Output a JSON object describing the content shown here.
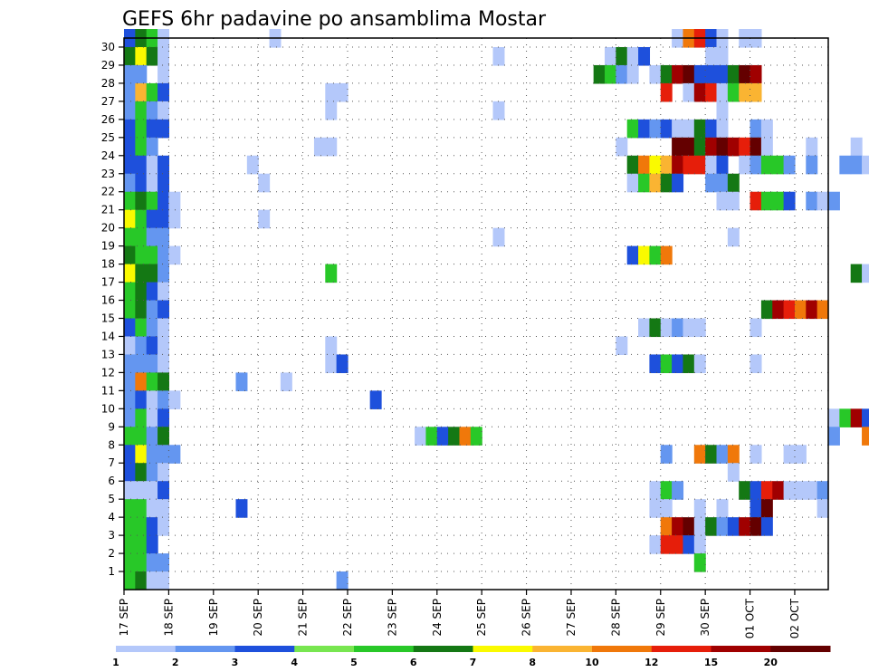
{
  "chart_data": {
    "type": "heatmap",
    "title": "GEFS 6hr padavine po ansamblima Mostar",
    "xlabel": "",
    "ylabel": "",
    "x_tick_labels": [
      "17 SEP",
      "18 SEP",
      "19 SEP",
      "20 SEP",
      "21 SEP",
      "22 SEP",
      "23 SEP",
      "24 SEP",
      "25 SEP",
      "26 SEP",
      "27 SEP",
      "28 SEP",
      "29 SEP",
      "30 SEP",
      "01 OCT",
      "02 OCT"
    ],
    "y_tick_labels": [
      "1",
      "2",
      "3",
      "4",
      "5",
      "6",
      "7",
      "8",
      "9",
      "10",
      "11",
      "12",
      "13",
      "14",
      "15",
      "16",
      "17",
      "18",
      "19",
      "20",
      "21",
      "22",
      "23",
      "24",
      "25",
      "26",
      "27",
      "28",
      "29",
      "30"
    ],
    "y_range": [
      0,
      30
    ],
    "time_steps_per_day": 4,
    "grid": "dotted",
    "colorbar": {
      "levels": [
        "1",
        "2",
        "3",
        "4",
        "5",
        "6",
        "7",
        "8",
        "10",
        "12",
        "15",
        "20"
      ],
      "colors": [
        "#b4c8fa",
        "#6496f0",
        "#1e50dc",
        "#78e650",
        "#28c828",
        "#147814",
        "#fafa00",
        "#fab432",
        "#f0780a",
        "#e61e0a",
        "#a00000",
        "#640000"
      ]
    },
    "cells_note_format": "[member, time_step_index, color_class_1_to_12]",
    "cells": [
      [
        30,
        0,
        3
      ],
      [
        30,
        1,
        6
      ],
      [
        30,
        2,
        5
      ],
      [
        30,
        3,
        1
      ],
      [
        30,
        13,
        1
      ],
      [
        30,
        49,
        1
      ],
      [
        30,
        50,
        9
      ],
      [
        30,
        51,
        10
      ],
      [
        30,
        52,
        3
      ],
      [
        30,
        53,
        1
      ],
      [
        30,
        55,
        1
      ],
      [
        30,
        56,
        1
      ],
      [
        30,
        70,
        2
      ],
      [
        30,
        71,
        2
      ],
      [
        30,
        72,
        2
      ],
      [
        29,
        0,
        6
      ],
      [
        29,
        1,
        7
      ],
      [
        29,
        2,
        6
      ],
      [
        29,
        3,
        1
      ],
      [
        29,
        33,
        1
      ],
      [
        29,
        43,
        1
      ],
      [
        29,
        44,
        6
      ],
      [
        29,
        45,
        1
      ],
      [
        29,
        46,
        3
      ],
      [
        29,
        52,
        1
      ],
      [
        29,
        53,
        1
      ],
      [
        28,
        0,
        2
      ],
      [
        28,
        1,
        2
      ],
      [
        28,
        3,
        1
      ],
      [
        28,
        42,
        6
      ],
      [
        28,
        43,
        5
      ],
      [
        28,
        44,
        2
      ],
      [
        28,
        45,
        1
      ],
      [
        28,
        47,
        1
      ],
      [
        28,
        48,
        6
      ],
      [
        28,
        49,
        11
      ],
      [
        28,
        50,
        12
      ],
      [
        28,
        51,
        3
      ],
      [
        28,
        52,
        3
      ],
      [
        28,
        53,
        3
      ],
      [
        28,
        54,
        6
      ],
      [
        28,
        55,
        12
      ],
      [
        28,
        56,
        11
      ],
      [
        27,
        0,
        2
      ],
      [
        27,
        1,
        8
      ],
      [
        27,
        2,
        5
      ],
      [
        27,
        3,
        3
      ],
      [
        27,
        18,
        1
      ],
      [
        27,
        19,
        1
      ],
      [
        27,
        48,
        10
      ],
      [
        27,
        50,
        1
      ],
      [
        27,
        51,
        11
      ],
      [
        27,
        52,
        10
      ],
      [
        27,
        53,
        1
      ],
      [
        27,
        54,
        5
      ],
      [
        27,
        55,
        8
      ],
      [
        27,
        56,
        8
      ],
      [
        27,
        67,
        1
      ],
      [
        27,
        70,
        1
      ],
      [
        27,
        71,
        2
      ],
      [
        26,
        0,
        2
      ],
      [
        26,
        1,
        5
      ],
      [
        26,
        2,
        2
      ],
      [
        26,
        3,
        1
      ],
      [
        26,
        18,
        1
      ],
      [
        26,
        33,
        1
      ],
      [
        26,
        53,
        1
      ],
      [
        26,
        71,
        2
      ],
      [
        26,
        72,
        1
      ],
      [
        25,
        0,
        3
      ],
      [
        25,
        1,
        5
      ],
      [
        25,
        2,
        3
      ],
      [
        25,
        3,
        3
      ],
      [
        25,
        45,
        5
      ],
      [
        25,
        46,
        3
      ],
      [
        25,
        47,
        2
      ],
      [
        25,
        48,
        3
      ],
      [
        25,
        49,
        1
      ],
      [
        25,
        50,
        1
      ],
      [
        25,
        51,
        6
      ],
      [
        25,
        52,
        3
      ],
      [
        25,
        53,
        1
      ],
      [
        25,
        56,
        2
      ],
      [
        25,
        57,
        1
      ],
      [
        24,
        0,
        3
      ],
      [
        24,
        1,
        5
      ],
      [
        24,
        2,
        2
      ],
      [
        24,
        17,
        1
      ],
      [
        24,
        18,
        1
      ],
      [
        24,
        44,
        1
      ],
      [
        24,
        49,
        12
      ],
      [
        24,
        50,
        12
      ],
      [
        24,
        51,
        6
      ],
      [
        24,
        52,
        11
      ],
      [
        24,
        53,
        12
      ],
      [
        24,
        54,
        11
      ],
      [
        24,
        55,
        10
      ],
      [
        24,
        56,
        12
      ],
      [
        24,
        57,
        1
      ],
      [
        24,
        61,
        1
      ],
      [
        24,
        65,
        1
      ],
      [
        24,
        70,
        2
      ],
      [
        24,
        71,
        3
      ],
      [
        23,
        0,
        3
      ],
      [
        23,
        1,
        3
      ],
      [
        23,
        2,
        1
      ],
      [
        23,
        3,
        3
      ],
      [
        23,
        11,
        1
      ],
      [
        23,
        45,
        6
      ],
      [
        23,
        46,
        9
      ],
      [
        23,
        47,
        7
      ],
      [
        23,
        48,
        8
      ],
      [
        23,
        49,
        11
      ],
      [
        23,
        50,
        10
      ],
      [
        23,
        51,
        10
      ],
      [
        23,
        52,
        1
      ],
      [
        23,
        53,
        3
      ],
      [
        23,
        55,
        1
      ],
      [
        23,
        56,
        2
      ],
      [
        23,
        57,
        5
      ],
      [
        23,
        58,
        5
      ],
      [
        23,
        59,
        2
      ],
      [
        23,
        61,
        2
      ],
      [
        23,
        64,
        2
      ],
      [
        23,
        65,
        2
      ],
      [
        23,
        66,
        1
      ],
      [
        22,
        0,
        2
      ],
      [
        22,
        1,
        3
      ],
      [
        22,
        2,
        1
      ],
      [
        22,
        3,
        3
      ],
      [
        22,
        12,
        1
      ],
      [
        22,
        45,
        1
      ],
      [
        22,
        46,
        5
      ],
      [
        22,
        47,
        8
      ],
      [
        22,
        48,
        6
      ],
      [
        22,
        49,
        3
      ],
      [
        22,
        52,
        2
      ],
      [
        22,
        53,
        2
      ],
      [
        22,
        54,
        6
      ],
      [
        21,
        0,
        5
      ],
      [
        21,
        1,
        6
      ],
      [
        21,
        2,
        5
      ],
      [
        21,
        3,
        3
      ],
      [
        21,
        4,
        1
      ],
      [
        21,
        53,
        1
      ],
      [
        21,
        54,
        1
      ],
      [
        21,
        56,
        10
      ],
      [
        21,
        57,
        5
      ],
      [
        21,
        58,
        5
      ],
      [
        21,
        59,
        3
      ],
      [
        21,
        61,
        2
      ],
      [
        21,
        62,
        1
      ],
      [
        21,
        63,
        2
      ],
      [
        20,
        0,
        7
      ],
      [
        20,
        1,
        5
      ],
      [
        20,
        2,
        3
      ],
      [
        20,
        3,
        3
      ],
      [
        20,
        4,
        1
      ],
      [
        20,
        12,
        1
      ],
      [
        20,
        68,
        1
      ],
      [
        20,
        70,
        3
      ],
      [
        20,
        71,
        1
      ],
      [
        20,
        72,
        6
      ],
      [
        19,
        0,
        5
      ],
      [
        19,
        1,
        5
      ],
      [
        19,
        2,
        2
      ],
      [
        19,
        3,
        2
      ],
      [
        19,
        33,
        1
      ],
      [
        19,
        54,
        1
      ],
      [
        18,
        0,
        6
      ],
      [
        18,
        1,
        5
      ],
      [
        18,
        2,
        5
      ],
      [
        18,
        3,
        2
      ],
      [
        18,
        4,
        1
      ],
      [
        18,
        45,
        3
      ],
      [
        18,
        46,
        7
      ],
      [
        18,
        47,
        5
      ],
      [
        18,
        48,
        9
      ],
      [
        17,
        0,
        7
      ],
      [
        17,
        1,
        6
      ],
      [
        17,
        2,
        6
      ],
      [
        17,
        3,
        2
      ],
      [
        17,
        18,
        5
      ],
      [
        17,
        65,
        6
      ],
      [
        17,
        66,
        1
      ],
      [
        17,
        67,
        1
      ],
      [
        16,
        0,
        5
      ],
      [
        16,
        1,
        6
      ],
      [
        16,
        2,
        3
      ],
      [
        16,
        3,
        1
      ],
      [
        15,
        0,
        5
      ],
      [
        15,
        1,
        6
      ],
      [
        15,
        2,
        2
      ],
      [
        15,
        3,
        3
      ],
      [
        15,
        57,
        6
      ],
      [
        15,
        58,
        11
      ],
      [
        15,
        59,
        10
      ],
      [
        15,
        60,
        9
      ],
      [
        15,
        61,
        11
      ],
      [
        15,
        62,
        9
      ],
      [
        14,
        0,
        3
      ],
      [
        14,
        1,
        5
      ],
      [
        14,
        2,
        2
      ],
      [
        14,
        3,
        1
      ],
      [
        14,
        46,
        1
      ],
      [
        14,
        47,
        6
      ],
      [
        14,
        48,
        1
      ],
      [
        14,
        49,
        2
      ],
      [
        14,
        50,
        1
      ],
      [
        14,
        51,
        1
      ],
      [
        14,
        56,
        1
      ],
      [
        14,
        70,
        1
      ],
      [
        13,
        0,
        1
      ],
      [
        13,
        1,
        2
      ],
      [
        13,
        2,
        3
      ],
      [
        13,
        3,
        1
      ],
      [
        13,
        18,
        1
      ],
      [
        13,
        44,
        1
      ],
      [
        12,
        0,
        2
      ],
      [
        12,
        1,
        2
      ],
      [
        12,
        2,
        2
      ],
      [
        12,
        3,
        1
      ],
      [
        12,
        18,
        1
      ],
      [
        12,
        19,
        3
      ],
      [
        12,
        47,
        3
      ],
      [
        12,
        48,
        5
      ],
      [
        12,
        49,
        3
      ],
      [
        12,
        50,
        6
      ],
      [
        12,
        51,
        1
      ],
      [
        12,
        56,
        1
      ],
      [
        12,
        68,
        1
      ],
      [
        12,
        69,
        1
      ],
      [
        12,
        70,
        1
      ],
      [
        12,
        71,
        5
      ],
      [
        12,
        72,
        1
      ],
      [
        11,
        0,
        2
      ],
      [
        11,
        1,
        9
      ],
      [
        11,
        2,
        5
      ],
      [
        11,
        3,
        6
      ],
      [
        11,
        10,
        2
      ],
      [
        11,
        14,
        1
      ],
      [
        10,
        0,
        2
      ],
      [
        10,
        1,
        3
      ],
      [
        10,
        2,
        1
      ],
      [
        10,
        3,
        2
      ],
      [
        10,
        4,
        1
      ],
      [
        10,
        22,
        3
      ],
      [
        10,
        72,
        1
      ],
      [
        9,
        0,
        2
      ],
      [
        9,
        1,
        5
      ],
      [
        9,
        2,
        1
      ],
      [
        9,
        3,
        3
      ],
      [
        9,
        63,
        1
      ],
      [
        9,
        64,
        5
      ],
      [
        9,
        65,
        11
      ],
      [
        9,
        66,
        3
      ],
      [
        9,
        67,
        5
      ],
      [
        9,
        68,
        2
      ],
      [
        9,
        69,
        11
      ],
      [
        9,
        70,
        11
      ],
      [
        9,
        71,
        12
      ],
      [
        9,
        72,
        7
      ],
      [
        8,
        0,
        5
      ],
      [
        8,
        1,
        5
      ],
      [
        8,
        2,
        2
      ],
      [
        8,
        3,
        6
      ],
      [
        8,
        26,
        1
      ],
      [
        8,
        27,
        5
      ],
      [
        8,
        28,
        3
      ],
      [
        8,
        29,
        6
      ],
      [
        8,
        30,
        9
      ],
      [
        8,
        31,
        5
      ],
      [
        8,
        63,
        2
      ],
      [
        8,
        66,
        9
      ],
      [
        8,
        67,
        11
      ],
      [
        8,
        68,
        3
      ],
      [
        7,
        0,
        3
      ],
      [
        7,
        1,
        7
      ],
      [
        7,
        2,
        2
      ],
      [
        7,
        3,
        2
      ],
      [
        7,
        4,
        2
      ],
      [
        7,
        48,
        2
      ],
      [
        7,
        51,
        9
      ],
      [
        7,
        52,
        6
      ],
      [
        7,
        53,
        2
      ],
      [
        7,
        54,
        9
      ],
      [
        7,
        56,
        1
      ],
      [
        7,
        59,
        1
      ],
      [
        7,
        60,
        1
      ],
      [
        6,
        0,
        3
      ],
      [
        6,
        1,
        6
      ],
      [
        6,
        2,
        2
      ],
      [
        6,
        3,
        1
      ],
      [
        6,
        54,
        1
      ],
      [
        5,
        0,
        1
      ],
      [
        5,
        1,
        1
      ],
      [
        5,
        2,
        1
      ],
      [
        5,
        3,
        3
      ],
      [
        5,
        47,
        1
      ],
      [
        5,
        48,
        5
      ],
      [
        5,
        49,
        2
      ],
      [
        5,
        55,
        6
      ],
      [
        5,
        56,
        3
      ],
      [
        5,
        57,
        10
      ],
      [
        5,
        58,
        11
      ],
      [
        5,
        59,
        1
      ],
      [
        5,
        60,
        1
      ],
      [
        5,
        61,
        1
      ],
      [
        5,
        62,
        2
      ],
      [
        5,
        72,
        1
      ],
      [
        4,
        0,
        5
      ],
      [
        4,
        1,
        5
      ],
      [
        4,
        2,
        1
      ],
      [
        4,
        3,
        1
      ],
      [
        4,
        10,
        3
      ],
      [
        4,
        47,
        1
      ],
      [
        4,
        48,
        1
      ],
      [
        4,
        51,
        1
      ],
      [
        4,
        53,
        1
      ],
      [
        4,
        56,
        3
      ],
      [
        4,
        57,
        12
      ],
      [
        4,
        62,
        1
      ],
      [
        4,
        70,
        1
      ],
      [
        4,
        71,
        2
      ],
      [
        3,
        0,
        5
      ],
      [
        3,
        1,
        5
      ],
      [
        3,
        2,
        3
      ],
      [
        3,
        3,
        1
      ],
      [
        3,
        48,
        9
      ],
      [
        3,
        49,
        11
      ],
      [
        3,
        50,
        12
      ],
      [
        3,
        51,
        1
      ],
      [
        3,
        52,
        6
      ],
      [
        3,
        53,
        2
      ],
      [
        3,
        54,
        3
      ],
      [
        3,
        55,
        11
      ],
      [
        3,
        56,
        12
      ],
      [
        3,
        57,
        3
      ],
      [
        3,
        70,
        3
      ],
      [
        3,
        71,
        6
      ],
      [
        3,
        72,
        1
      ],
      [
        2,
        0,
        5
      ],
      [
        2,
        1,
        5
      ],
      [
        2,
        2,
        3
      ],
      [
        2,
        47,
        1
      ],
      [
        2,
        48,
        10
      ],
      [
        2,
        49,
        10
      ],
      [
        2,
        50,
        3
      ],
      [
        2,
        51,
        1
      ],
      [
        1,
        0,
        5
      ],
      [
        1,
        1,
        5
      ],
      [
        1,
        2,
        2
      ],
      [
        1,
        3,
        2
      ],
      [
        1,
        51,
        5
      ],
      [
        1,
        71,
        2
      ],
      [
        0,
        0,
        5
      ],
      [
        0,
        1,
        6
      ],
      [
        0,
        2,
        1
      ],
      [
        0,
        3,
        1
      ],
      [
        0,
        19,
        2
      ]
    ]
  }
}
